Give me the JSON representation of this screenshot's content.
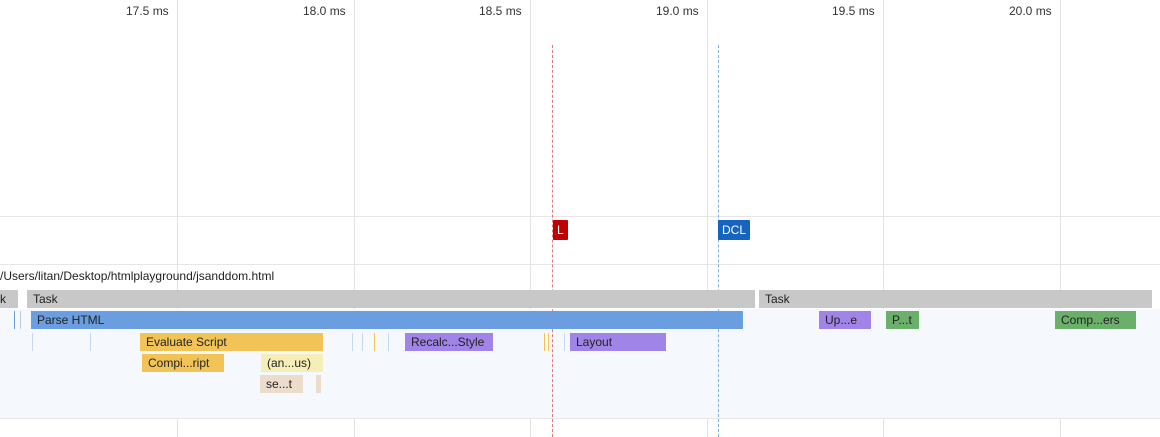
{
  "ticks": [
    "17.5 ms",
    "18.0 ms",
    "18.5 ms",
    "19.0 ms",
    "19.5 ms",
    "20.0 ms"
  ],
  "markers": {
    "load": {
      "label": "L",
      "color": "#c00000"
    },
    "dcl": {
      "label": "DCL",
      "color": "#1565c0"
    }
  },
  "url": "/Users/litan/Desktop/htmlplayground/jsanddom.html",
  "colors": {
    "task": "#c8c8c8",
    "parse_html": "#6b9ee0",
    "script": "#f2c457",
    "script_light": "#f5eeb8",
    "script_tan": "#ecdccb",
    "rendering": "#a084e8",
    "painting": "#6aaf6a"
  },
  "events": {
    "task_left_stub": "k",
    "task_1": "Task",
    "task_2": "Task",
    "parse_html": "Parse HTML",
    "update_layer": "Up...e",
    "paint": "P...t",
    "composite": "Comp...ers",
    "evaluate_script": "Evaluate Script",
    "recalc_style": "Recalc...Style",
    "layout": "Layout",
    "compile_script": "Compi...ript",
    "anonymous": "(an...us)",
    "set_timeout": "se...t"
  }
}
